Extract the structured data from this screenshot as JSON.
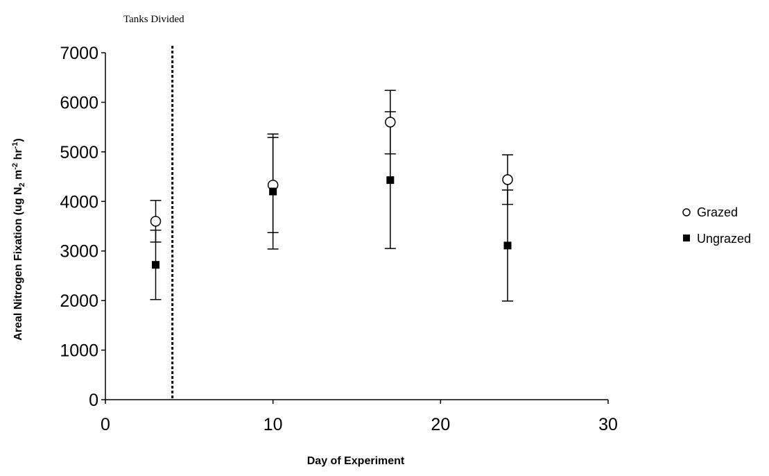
{
  "chart_data": {
    "type": "scatter",
    "annotation": "Tanks Divided",
    "annotation_line_x": 4,
    "xlabel": "Day of Experiment",
    "ylabel": "Areal Nitrogen Fixation (ug N₂ m⁻² hr⁻¹)",
    "ylabel_parts": {
      "base": "Areal Nitrogen Fixation (ug N",
      "sub": "2",
      "mid1": " m",
      "sup1": "-2",
      "mid2": " hr",
      "sup2": "-1",
      "end": ")"
    },
    "xlim": [
      0,
      30
    ],
    "ylim": [
      0,
      7000
    ],
    "x_ticks": [
      0,
      10,
      20,
      30
    ],
    "x_tick_labels": [
      "0",
      "10",
      "20",
      "30"
    ],
    "y_ticks": [
      0,
      1000,
      2000,
      3000,
      4000,
      5000,
      6000,
      7000
    ],
    "y_tick_labels": [
      "0",
      "1000",
      "2000",
      "3000",
      "4000",
      "5000",
      "6000",
      "7000"
    ],
    "grid": false,
    "legend_position": "right",
    "series": [
      {
        "name": "Grazed",
        "marker": "open-circle",
        "color": "#000000",
        "points": [
          {
            "x": 3,
            "y": 3600,
            "err": 420
          },
          {
            "x": 10,
            "y": 4330,
            "err": 960
          },
          {
            "x": 17,
            "y": 5600,
            "err": 640
          },
          {
            "x": 24,
            "y": 4440,
            "err": 500
          }
        ]
      },
      {
        "name": "Ungrazed",
        "marker": "filled-square",
        "color": "#000000",
        "points": [
          {
            "x": 3,
            "y": 2720,
            "err": 700
          },
          {
            "x": 10,
            "y": 4200,
            "err": 1160
          },
          {
            "x": 17,
            "y": 4430,
            "err": 1380
          },
          {
            "x": 24,
            "y": 3110,
            "err": 1120
          }
        ]
      }
    ]
  }
}
